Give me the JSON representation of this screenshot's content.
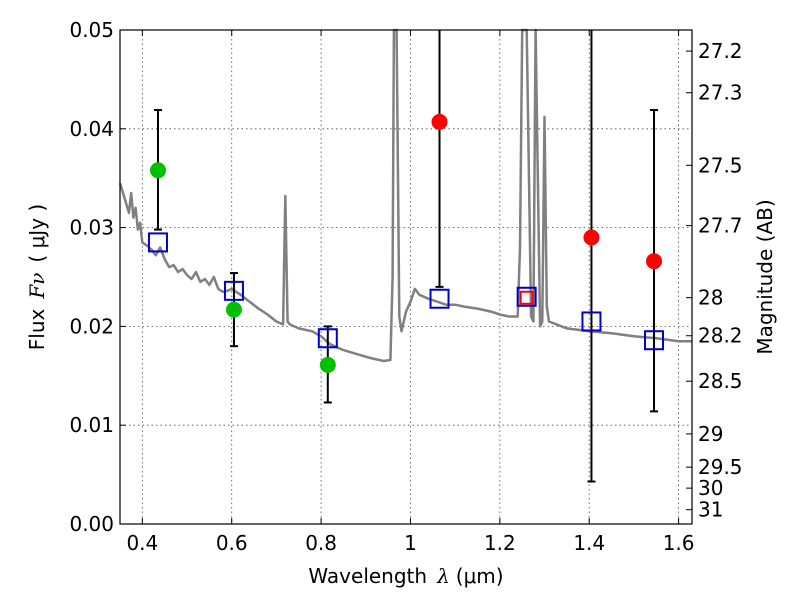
{
  "chart_data": {
    "type": "scatter",
    "x_axis": {
      "label": "Wavelength",
      "label_symbol": "λ",
      "label_unit": "(μm)",
      "lim": [
        0.35,
        1.63
      ],
      "ticks": [
        0.4,
        0.6,
        0.8,
        1.0,
        1.2,
        1.4,
        1.6
      ],
      "tick_labels": [
        "0.4",
        "0.6",
        "0.8",
        "1",
        "1.2",
        "1.4",
        "1.6"
      ],
      "grid": true
    },
    "y_axis": {
      "label": "Flux",
      "label_symbol": "Fν",
      "label_unit": "( μJy )",
      "lim": [
        0.0,
        0.05
      ],
      "ticks": [
        0.0,
        0.01,
        0.02,
        0.03,
        0.04,
        0.05
      ],
      "tick_labels": [
        "0.00",
        "0.01",
        "0.02",
        "0.03",
        "0.04",
        "0.05"
      ],
      "grid": true
    },
    "y2_axis": {
      "label": "Magnitude (AB)",
      "ticks": [
        27.2,
        27.3,
        27.5,
        27.7,
        28,
        28.2,
        28.5,
        29,
        29.5,
        30,
        31
      ],
      "tick_labels": [
        "27.2",
        "27.3",
        "27.5",
        "27.7",
        "28",
        "28.2",
        "28.5",
        "29",
        "29.5",
        "30",
        "31"
      ]
    },
    "series": [
      {
        "kind": "line",
        "color": "#808080",
        "x": [
          0.35,
          0.36,
          0.37,
          0.375,
          0.38,
          0.385,
          0.39,
          0.395,
          0.4,
          0.41,
          0.42,
          0.43,
          0.44,
          0.45,
          0.46,
          0.47,
          0.48,
          0.49,
          0.5,
          0.51,
          0.52,
          0.53,
          0.54,
          0.55,
          0.56,
          0.57,
          0.58,
          0.59,
          0.6,
          0.62,
          0.64,
          0.66,
          0.68,
          0.7,
          0.715,
          0.72,
          0.725,
          0.73,
          0.75,
          0.78,
          0.8,
          0.82,
          0.85,
          0.88,
          0.91,
          0.94,
          0.955,
          0.96,
          0.963,
          0.966,
          0.969,
          0.972,
          0.975,
          0.98,
          0.99,
          1.0,
          1.01,
          1.02,
          1.04,
          1.06,
          1.08,
          1.1,
          1.12,
          1.15,
          1.18,
          1.2,
          1.22,
          1.24,
          1.245,
          1.25,
          1.255,
          1.26,
          1.27,
          1.275,
          1.28,
          1.29,
          1.295,
          1.3,
          1.305,
          1.31,
          1.35,
          1.4,
          1.45,
          1.5,
          1.55,
          1.6,
          1.63
        ],
        "y": [
          0.0345,
          0.033,
          0.0315,
          0.0335,
          0.031,
          0.032,
          0.0298,
          0.0305,
          0.0285,
          0.0282,
          0.0278,
          0.0272,
          0.028,
          0.0268,
          0.026,
          0.0262,
          0.0255,
          0.0258,
          0.0252,
          0.0248,
          0.0255,
          0.0245,
          0.0248,
          0.0242,
          0.025,
          0.0238,
          0.0235,
          0.0236,
          0.0238,
          0.0232,
          0.0225,
          0.0218,
          0.0212,
          0.0205,
          0.0202,
          0.0332,
          0.0205,
          0.0202,
          0.0198,
          0.0195,
          0.019,
          0.0182,
          0.0176,
          0.0172,
          0.0168,
          0.0165,
          0.0166,
          0.025,
          0.05,
          0.05,
          0.05,
          0.035,
          0.021,
          0.0195,
          0.0215,
          0.0225,
          0.0238,
          0.0232,
          0.0228,
          0.0225,
          0.0222,
          0.0222,
          0.022,
          0.0218,
          0.0215,
          0.0212,
          0.021,
          0.021,
          0.028,
          0.05,
          0.05,
          0.05,
          0.021,
          0.0205,
          0.05,
          0.02,
          0.0205,
          0.0412,
          0.022,
          0.0205,
          0.0198,
          0.0195,
          0.0193,
          0.019,
          0.0188,
          0.0185,
          0.0185
        ]
      },
      {
        "kind": "points",
        "marker": "circle",
        "color": "#00c000",
        "x": [
          0.435,
          0.605,
          0.815
        ],
        "y": [
          0.0358,
          0.0217,
          0.0161
        ],
        "err_y": [
          [
            0.0298,
            0.0419
          ],
          [
            0.018,
            0.0254
          ],
          [
            0.0123,
            0.02
          ]
        ]
      },
      {
        "kind": "points",
        "marker": "circle",
        "color": "#ff0000",
        "x": [
          1.065,
          1.405,
          1.545
        ],
        "y": [
          0.0407,
          0.029,
          0.0266
        ],
        "err_y": [
          [
            0.024,
            0.05
          ],
          [
            0.0043,
            0.05
          ],
          [
            0.0114,
            0.0419
          ]
        ]
      },
      {
        "kind": "points",
        "marker": "square",
        "color": "#0000cc",
        "x": [
          0.435,
          0.605,
          0.815,
          1.065,
          1.26,
          1.405,
          1.545
        ],
        "y": [
          0.0285,
          0.0236,
          0.0188,
          0.0228,
          0.023,
          0.0205,
          0.0186
        ]
      },
      {
        "kind": "points",
        "marker": "square-small",
        "color": "#ff0000",
        "x": [
          1.26
        ],
        "y": [
          0.0229
        ]
      }
    ]
  }
}
